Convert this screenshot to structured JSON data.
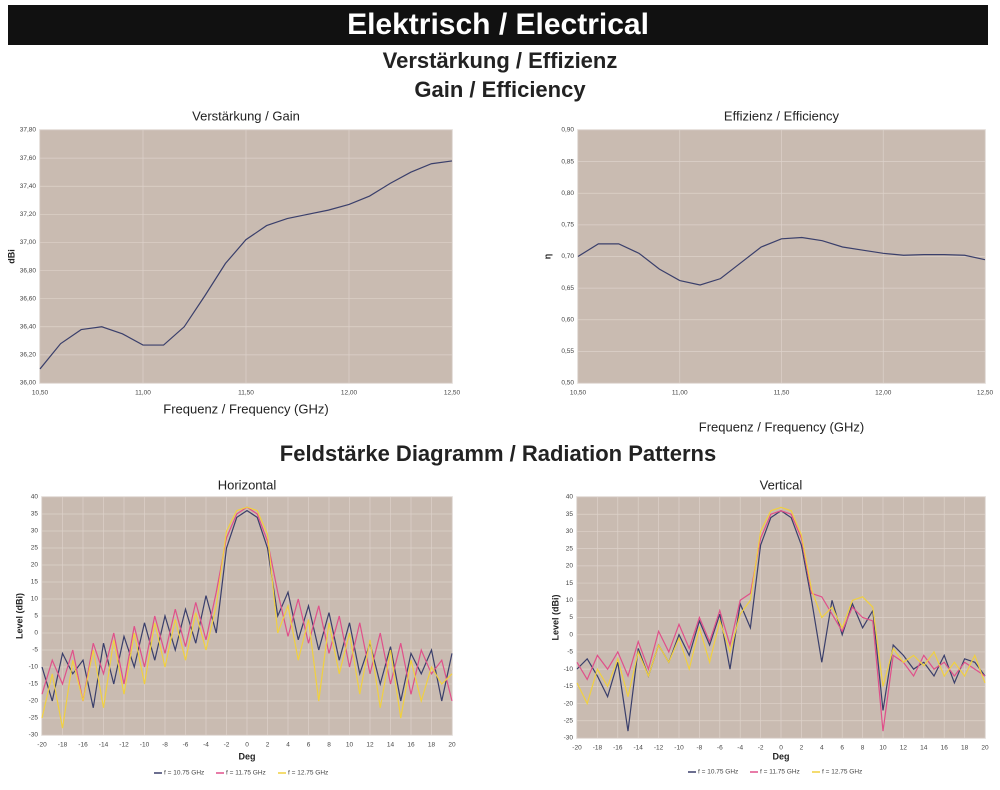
{
  "page": {
    "title": "Elektrisch / Electrical",
    "heading_de": "Verstärkung / Effizienz",
    "heading_en": "Gain / Efficiency",
    "heading_patterns": "Feldstärke Diagramm / Radiation Patterns"
  },
  "chart_data": [
    {
      "type": "line",
      "title": "Verstärkung / Gain",
      "x_label": "Frequenz / Frequency (GHz)",
      "y_label": "dBi",
      "x": [
        10.5,
        10.6,
        10.7,
        10.8,
        10.9,
        11.0,
        11.1,
        11.2,
        11.3,
        11.4,
        11.5,
        11.6,
        11.7,
        11.8,
        11.9,
        12.0,
        12.1,
        12.2,
        12.3,
        12.4,
        12.5
      ],
      "xlim": [
        10.5,
        12.5
      ],
      "xticks": [
        {
          "value": 10.5,
          "label": "10,50"
        },
        {
          "value": 11.0,
          "label": "11,00"
        },
        {
          "value": 11.5,
          "label": "11,50"
        },
        {
          "value": 12.0,
          "label": "12,00"
        },
        {
          "value": 12.5,
          "label": "12,50"
        }
      ],
      "ylim": [
        36.0,
        37.8
      ],
      "yticks": [
        {
          "value": 36.0,
          "label": "36,00"
        },
        {
          "value": 36.2,
          "label": "36,20"
        },
        {
          "value": 36.4,
          "label": "36,40"
        },
        {
          "value": 36.6,
          "label": "36,60"
        },
        {
          "value": 36.8,
          "label": "36,80"
        },
        {
          "value": 37.0,
          "label": "37,00"
        },
        {
          "value": 37.2,
          "label": "37,20"
        },
        {
          "value": 37.4,
          "label": "37,40"
        },
        {
          "value": 37.6,
          "label": "37,60"
        },
        {
          "value": 37.8,
          "label": "37,80"
        }
      ],
      "grid": true,
      "series": [
        {
          "color": "#3a3f6b",
          "values": [
            36.1,
            36.28,
            36.38,
            36.4,
            36.35,
            36.27,
            36.27,
            36.4,
            36.62,
            36.85,
            37.02,
            37.12,
            37.17,
            37.2,
            37.23,
            37.27,
            37.33,
            37.42,
            37.5,
            37.56,
            37.58
          ]
        }
      ]
    },
    {
      "type": "line",
      "title": "Effizienz / Efficiency",
      "x_label": "Frequenz / Frequency (GHz)",
      "y_label": "η",
      "x": [
        10.5,
        10.6,
        10.7,
        10.8,
        10.9,
        11.0,
        11.1,
        11.2,
        11.3,
        11.4,
        11.5,
        11.6,
        11.7,
        11.8,
        11.9,
        12.0,
        12.1,
        12.2,
        12.3,
        12.4,
        12.5
      ],
      "xlim": [
        10.5,
        12.5
      ],
      "xticks": [
        {
          "value": 10.5,
          "label": "10,50"
        },
        {
          "value": 11.0,
          "label": "11,00"
        },
        {
          "value": 11.5,
          "label": "11,50"
        },
        {
          "value": 12.0,
          "label": "12,00"
        },
        {
          "value": 12.5,
          "label": "12,50"
        }
      ],
      "ylim": [
        0.5,
        0.9
      ],
      "yticks": [
        {
          "value": 0.5,
          "label": "0,50"
        },
        {
          "value": 0.55,
          "label": "0,55"
        },
        {
          "value": 0.6,
          "label": "0,60"
        },
        {
          "value": 0.65,
          "label": "0,65"
        },
        {
          "value": 0.7,
          "label": "0,70"
        },
        {
          "value": 0.75,
          "label": "0,75"
        },
        {
          "value": 0.8,
          "label": "0,80"
        },
        {
          "value": 0.85,
          "label": "0,85"
        },
        {
          "value": 0.9,
          "label": "0,90"
        }
      ],
      "grid": true,
      "series": [
        {
          "color": "#3a3f6b",
          "values": [
            0.7,
            0.72,
            0.72,
            0.705,
            0.68,
            0.662,
            0.655,
            0.665,
            0.69,
            0.715,
            0.728,
            0.73,
            0.725,
            0.715,
            0.71,
            0.705,
            0.702,
            0.703,
            0.703,
            0.702,
            0.695
          ]
        }
      ]
    },
    {
      "type": "line",
      "title": "Horizontal",
      "x_label": "Deg",
      "y_label": "Level (dBi)",
      "x": [
        -20,
        -19,
        -18,
        -17,
        -16,
        -15,
        -14,
        -13,
        -12,
        -11,
        -10,
        -9,
        -8,
        -7,
        -6,
        -5,
        -4,
        -3,
        -2,
        -1,
        0,
        1,
        2,
        3,
        4,
        5,
        6,
        7,
        8,
        9,
        10,
        11,
        12,
        13,
        14,
        15,
        16,
        17,
        18,
        19,
        20
      ],
      "xlim": [
        -20,
        20
      ],
      "xticks": [
        -20,
        -18,
        -16,
        -14,
        -12,
        -10,
        -8,
        -6,
        -4,
        -2,
        0,
        2,
        4,
        6,
        8,
        10,
        12,
        14,
        16,
        18,
        20
      ],
      "ylim": [
        -30,
        40
      ],
      "yticks": [
        -30,
        -25,
        -20,
        -15,
        -10,
        -5,
        0,
        5,
        10,
        15,
        20,
        25,
        30,
        35,
        40
      ],
      "grid": true,
      "legend": "bottom",
      "series": [
        {
          "name": "f = 10.75 GHz",
          "color": "#3a3f6b",
          "values": [
            -10,
            -20,
            -6,
            -12,
            -8,
            -22,
            -3,
            -15,
            -1,
            -10,
            3,
            -8,
            5,
            -5,
            7,
            -3,
            11,
            0,
            25,
            34,
            36,
            34,
            25,
            5,
            12,
            -2,
            8,
            -5,
            6,
            -8,
            3,
            -12,
            -3,
            -15,
            -4,
            -20,
            -6,
            -12,
            -5,
            -20,
            -6
          ]
        },
        {
          "name": "f = 11.75 GHz",
          "color": "#e0508a",
          "values": [
            -18,
            -8,
            -15,
            -5,
            -20,
            -3,
            -12,
            0,
            -15,
            2,
            -10,
            5,
            -6,
            7,
            -4,
            9,
            -2,
            12,
            28,
            35,
            37,
            35,
            27,
            12,
            -1,
            10,
            -3,
            8,
            -6,
            5,
            -10,
            3,
            -12,
            0,
            -15,
            -3,
            -18,
            -5,
            -12,
            -8,
            -20
          ]
        },
        {
          "name": "f = 12.75 GHz",
          "color": "#f0d040",
          "values": [
            -25,
            -12,
            -28,
            -8,
            -20,
            -5,
            -22,
            -2,
            -18,
            0,
            -15,
            3,
            -10,
            4,
            -8,
            6,
            -5,
            8,
            30,
            36,
            37,
            36,
            29,
            0,
            8,
            -8,
            4,
            -20,
            3,
            -12,
            0,
            -18,
            -2,
            -22,
            -5,
            -25,
            -8,
            -20,
            -10,
            -15,
            -12
          ]
        }
      ]
    },
    {
      "type": "line",
      "title": "Vertical",
      "x_label": "Deg",
      "y_label": "Level (dBi)",
      "x": [
        -20,
        -19,
        -18,
        -17,
        -16,
        -15,
        -14,
        -13,
        -12,
        -11,
        -10,
        -9,
        -8,
        -7,
        -6,
        -5,
        -4,
        -3,
        -2,
        -1,
        0,
        1,
        2,
        3,
        4,
        5,
        6,
        7,
        8,
        9,
        10,
        11,
        12,
        13,
        14,
        15,
        16,
        17,
        18,
        19,
        20
      ],
      "xlim": [
        -20,
        20
      ],
      "xticks": [
        -20,
        -18,
        -16,
        -14,
        -12,
        -10,
        -8,
        -6,
        -4,
        -2,
        0,
        2,
        4,
        6,
        8,
        10,
        12,
        14,
        16,
        18,
        20
      ],
      "ylim": [
        -30,
        40
      ],
      "yticks": [
        -30,
        -25,
        -20,
        -15,
        -10,
        -5,
        0,
        5,
        10,
        15,
        20,
        25,
        30,
        35,
        40
      ],
      "grid": true,
      "legend": "bottom",
      "series": [
        {
          "name": "f = 10.75 GHz",
          "color": "#3a3f6b",
          "values": [
            -10,
            -7,
            -12,
            -18,
            -8,
            -28,
            -4,
            -12,
            -3,
            -8,
            0,
            -6,
            4,
            -3,
            6,
            -10,
            9,
            2,
            26,
            34,
            36,
            34,
            26,
            10,
            -8,
            10,
            0,
            9,
            2,
            7,
            -22,
            -3,
            -6,
            -10,
            -8,
            -12,
            -6,
            -14,
            -7,
            -8,
            -12
          ]
        },
        {
          "name": "f = 11.75 GHz",
          "color": "#e0508a",
          "values": [
            -8,
            -13,
            -6,
            -10,
            -5,
            -12,
            -2,
            -10,
            1,
            -5,
            3,
            -4,
            5,
            -2,
            7,
            -3,
            10,
            12,
            28,
            35,
            36,
            35,
            28,
            12,
            11,
            6,
            1,
            8,
            5,
            4,
            -28,
            -6,
            -8,
            -12,
            -6,
            -10,
            -8,
            -12,
            -8,
            -10,
            -12
          ]
        },
        {
          "name": "f = 12.75 GHz",
          "color": "#f0d040",
          "values": [
            -14,
            -20,
            -10,
            -15,
            -7,
            -18,
            -5,
            -12,
            -3,
            -8,
            -1,
            -10,
            2,
            -8,
            4,
            -5,
            6,
            10,
            30,
            36,
            37,
            36,
            29,
            13,
            5,
            8,
            2,
            10,
            11,
            8,
            -15,
            -4,
            -8,
            -6,
            -9,
            -5,
            -12,
            -8,
            -12,
            -6,
            -14
          ]
        }
      ]
    }
  ]
}
